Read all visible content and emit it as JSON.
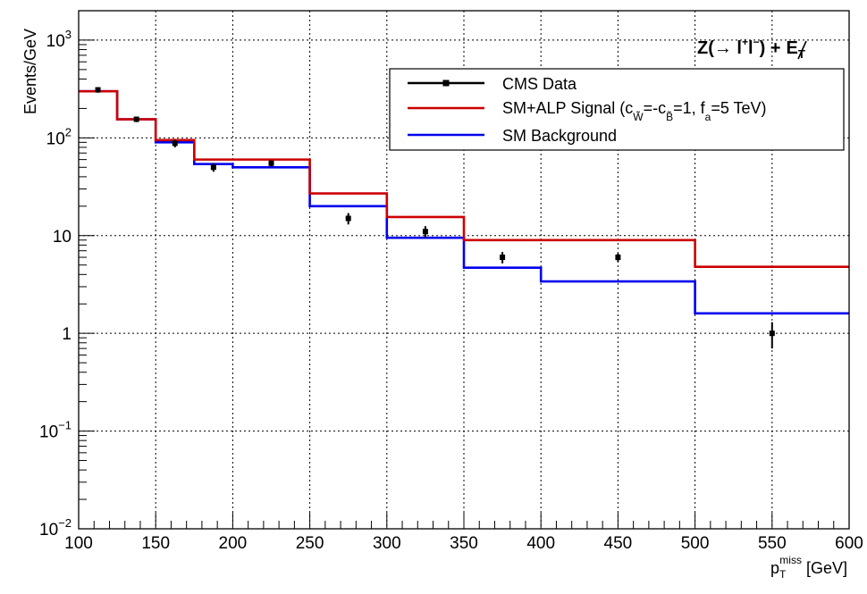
{
  "chart_data": {
    "type": "line",
    "xlabel": {
      "main": "p",
      "sub": "T",
      "sup": "miss",
      "unit": "[GeV]"
    },
    "ylabel": "Events/GeV",
    "xlim": [
      100,
      600
    ],
    "ylim": [
      0.01,
      2000
    ],
    "yscale": "log",
    "grid": true,
    "x_ticks": [
      100,
      150,
      200,
      250,
      300,
      350,
      400,
      450,
      500,
      550,
      600
    ],
    "x_tick_labels": [
      "100",
      "150",
      "200",
      "250",
      "300",
      "350",
      "400",
      "450",
      "500",
      "550",
      "600"
    ],
    "y_ticks": [
      0.01,
      0.1,
      1,
      10,
      100,
      1000
    ],
    "y_tick_labels": [
      {
        "base": "10",
        "exp": "−2"
      },
      {
        "base": "10",
        "exp": "−1"
      },
      {
        "base": "1",
        "exp": ""
      },
      {
        "base": "10",
        "exp": ""
      },
      {
        "base": "10",
        "exp": "2"
      },
      {
        "base": "10",
        "exp": "3"
      }
    ],
    "annotation": {
      "text": "Z(→ l",
      "sup1": "+",
      "mid": "l",
      "sup2": "−",
      "tail": ") +",
      "met": "E",
      "met_sub": "T"
    },
    "legend_position": "top-right",
    "legend": [
      {
        "name": "CMS Data",
        "color": "#000000",
        "kind": "marker"
      },
      {
        "name": "SM+ALP Signal (c",
        "sub1": "W̃",
        "mid1": "=-c",
        "sub2": "B̃",
        "mid2": "=1, f",
        "sub3": "a",
        "tail": "=5 TeV)",
        "color": "#cc0000",
        "kind": "line"
      },
      {
        "name": "SM Background",
        "color": "#0000ee",
        "kind": "line"
      }
    ],
    "bin_edges": [
      100,
      125,
      150,
      175,
      200,
      250,
      300,
      350,
      400,
      500,
      600
    ],
    "series": [
      {
        "name": "SM+ALP Signal",
        "color": "#cc0000",
        "values": [
          300,
          155,
          95,
          60,
          60,
          27,
          15.5,
          9,
          9,
          4.8
        ]
      },
      {
        "name": "SM Background",
        "color": "#0000ee",
        "values": [
          300,
          155,
          90,
          54,
          50,
          20,
          9.5,
          4.7,
          3.4,
          1.6
        ]
      },
      {
        "name": "CMS Data",
        "color": "#000000",
        "x": [
          112.5,
          137.5,
          162.5,
          187.5,
          225,
          275,
          325,
          375,
          450,
          550
        ],
        "values": [
          310,
          155,
          88,
          50,
          55,
          15,
          11,
          6,
          6,
          1
        ],
        "errors_low": [
          20,
          10,
          8,
          5,
          4,
          2,
          1.5,
          0.8,
          0.6,
          0.3
        ],
        "errors_high": [
          20,
          10,
          8,
          5,
          4,
          2,
          1.5,
          0.8,
          0.6,
          0.3
        ]
      }
    ]
  }
}
